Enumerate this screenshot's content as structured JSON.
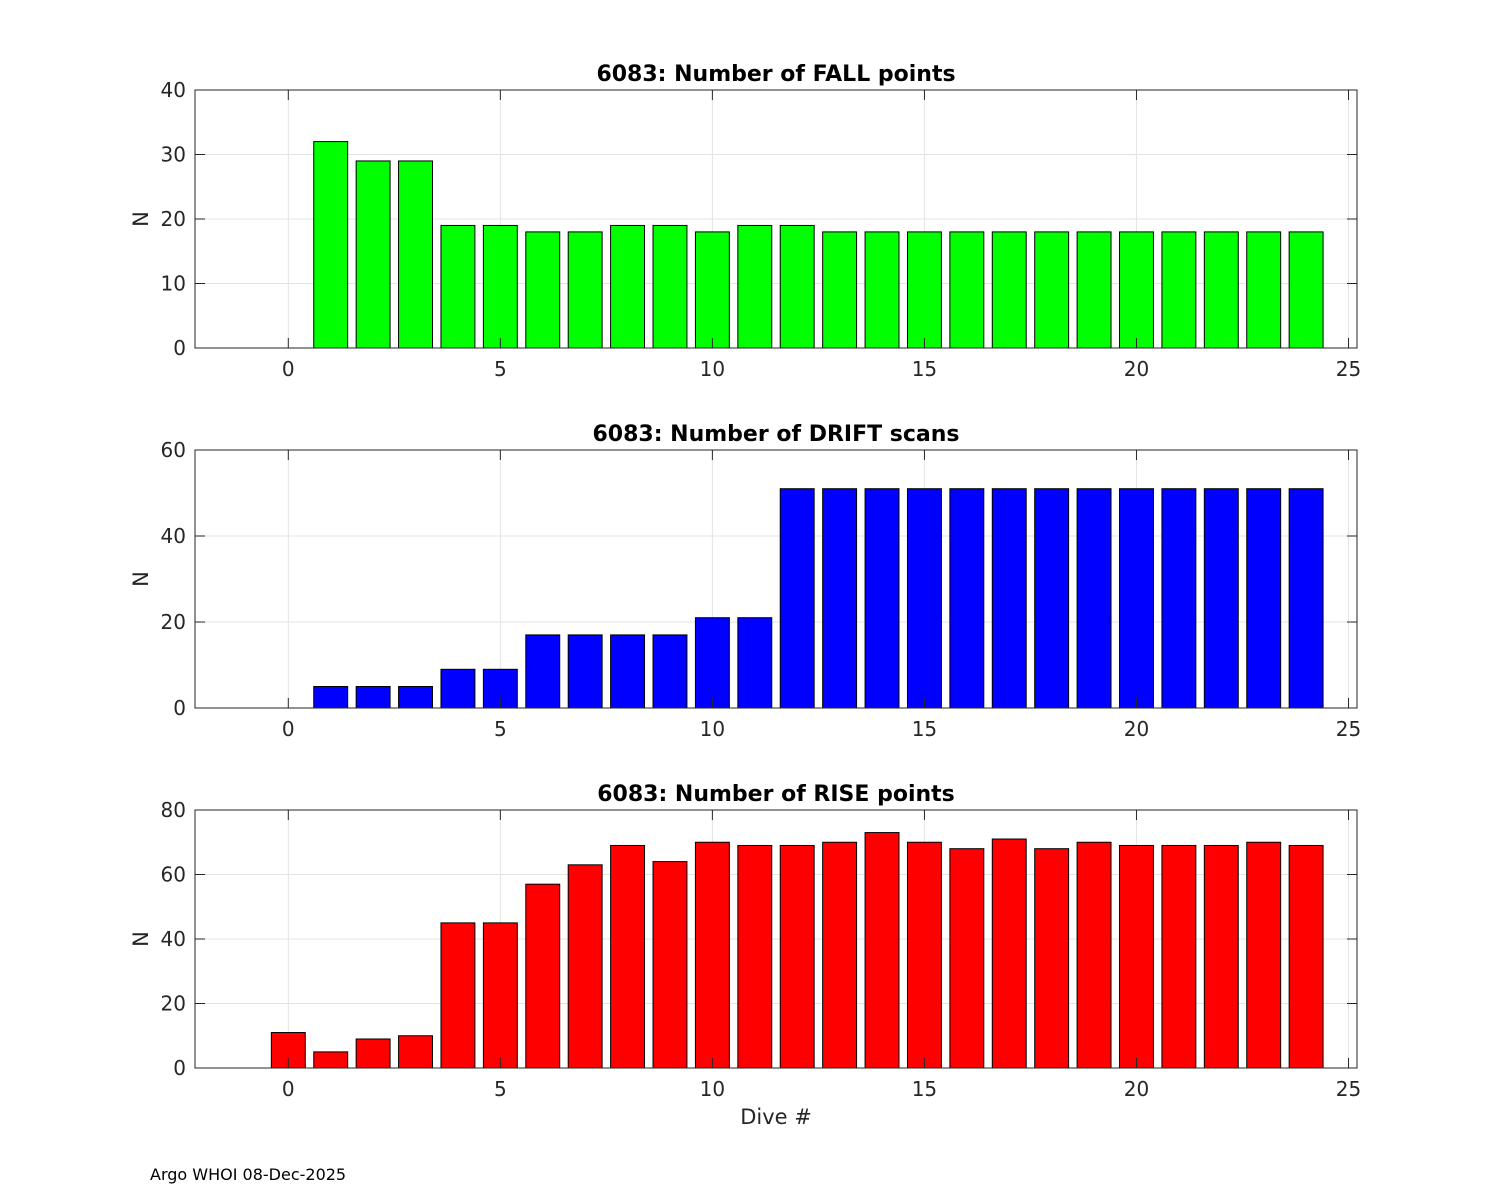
{
  "footer": "Argo WHOI 08-Dec-2025",
  "chart_data": [
    {
      "type": "bar",
      "title": "6083: Number of FALL points",
      "xlabel": "",
      "ylabel": "N",
      "xlim": [
        -2.2,
        25.2
      ],
      "ylim": [
        0,
        40
      ],
      "xticks": [
        0,
        5,
        10,
        15,
        20,
        25
      ],
      "yticks": [
        0,
        10,
        20,
        30,
        40
      ],
      "grid": true,
      "bar_color": "#00ff00",
      "x": [
        -1,
        0,
        1,
        2,
        3,
        4,
        5,
        6,
        7,
        8,
        9,
        10,
        11,
        12,
        13,
        14,
        15,
        16,
        17,
        18,
        19,
        20,
        21,
        22,
        23,
        24
      ],
      "values": [
        0,
        0,
        32,
        29,
        29,
        19,
        19,
        18,
        18,
        19,
        19,
        18,
        19,
        19,
        18,
        18,
        18,
        18,
        18,
        18,
        18,
        18,
        18,
        18,
        18,
        18
      ]
    },
    {
      "type": "bar",
      "title": "6083: Number of DRIFT scans",
      "xlabel": "",
      "ylabel": "N",
      "xlim": [
        -2.2,
        25.2
      ],
      "ylim": [
        0,
        60
      ],
      "xticks": [
        0,
        5,
        10,
        15,
        20,
        25
      ],
      "yticks": [
        0,
        20,
        40,
        60
      ],
      "grid": true,
      "bar_color": "#0000ff",
      "x": [
        -1,
        0,
        1,
        2,
        3,
        4,
        5,
        6,
        7,
        8,
        9,
        10,
        11,
        12,
        13,
        14,
        15,
        16,
        17,
        18,
        19,
        20,
        21,
        22,
        23,
        24
      ],
      "values": [
        0,
        0,
        5,
        5,
        5,
        9,
        9,
        17,
        17,
        17,
        17,
        21,
        21,
        51,
        51,
        51,
        51,
        51,
        51,
        51,
        51,
        51,
        51,
        51,
        51,
        51
      ]
    },
    {
      "type": "bar",
      "title": "6083: Number of RISE points",
      "xlabel": "Dive #",
      "ylabel": "N",
      "xlim": [
        -2.2,
        25.2
      ],
      "ylim": [
        0,
        80
      ],
      "xticks": [
        0,
        5,
        10,
        15,
        20,
        25
      ],
      "yticks": [
        0,
        20,
        40,
        60,
        80
      ],
      "grid": true,
      "bar_color": "#ff0000",
      "x": [
        -1,
        0,
        1,
        2,
        3,
        4,
        5,
        6,
        7,
        8,
        9,
        10,
        11,
        12,
        13,
        14,
        15,
        16,
        17,
        18,
        19,
        20,
        21,
        22,
        23,
        24
      ],
      "values": [
        0,
        11,
        5,
        9,
        10,
        45,
        45,
        57,
        63,
        69,
        64,
        70,
        69,
        69,
        70,
        73,
        70,
        68,
        71,
        68,
        70,
        69,
        69,
        69,
        70,
        69
      ]
    }
  ]
}
